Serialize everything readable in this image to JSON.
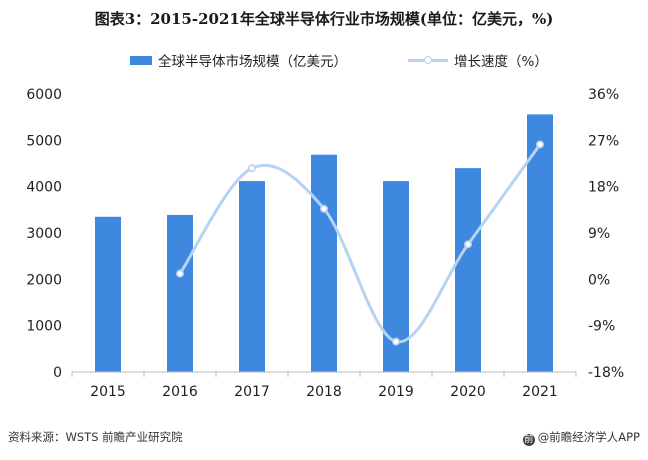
{
  "title": "图表3：2015-2021年全球半导体行业市场规模(单位：亿美元，%)",
  "footer": {
    "source": "资料来源：WSTS 前瞻产业研究院",
    "brand": "@前瞻经济学人APP"
  },
  "colors": {
    "bar": "#3f88e0",
    "line": "#b7d3f2",
    "axis": "#bfbfbf"
  },
  "icons": {
    "brand_logo": "circle-logo-icon"
  },
  "chart_data": {
    "type": "bar+line",
    "title": "图表3：2015-2021年全球半导体行业市场规模(单位：亿美元，%)",
    "categories": [
      "2015",
      "2016",
      "2017",
      "2018",
      "2019",
      "2020",
      "2021"
    ],
    "series": [
      {
        "name": "全球半导体市场规模（亿美元）",
        "type": "bar",
        "axis": "left",
        "values": [
          3350,
          3390,
          4120,
          4690,
          4120,
          4400,
          5560
        ]
      },
      {
        "name": "增长速度（%）",
        "type": "line",
        "axis": "right",
        "values": [
          null,
          1.1,
          21.6,
          13.7,
          -12.1,
          6.8,
          26.2
        ]
      }
    ],
    "y_left": {
      "range": [
        0,
        6000
      ],
      "ticks": [
        "0",
        "1000",
        "2000",
        "3000",
        "4000",
        "5000",
        "6000"
      ]
    },
    "y_right": {
      "range": [
        -18,
        36
      ],
      "ticks": [
        "-18%",
        "-9%",
        "0%",
        "9%",
        "18%",
        "27%",
        "36%"
      ]
    },
    "legend_position": "top",
    "grid": false
  }
}
